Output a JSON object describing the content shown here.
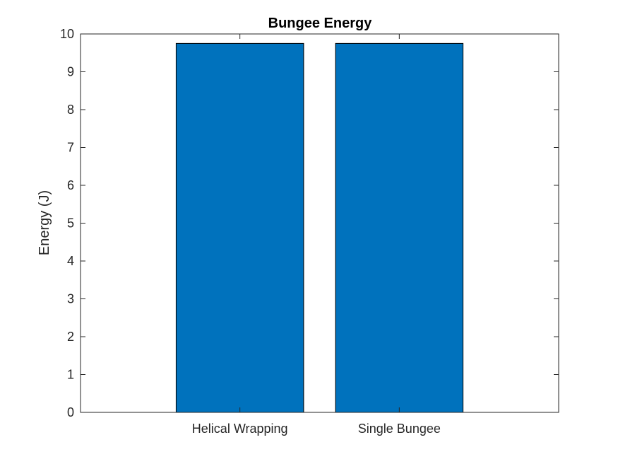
{
  "chart_data": {
    "type": "bar",
    "title": "Bungee Energy",
    "xlabel": "",
    "ylabel": "Energy (J)",
    "categories": [
      "Helical Wrapping",
      "Single Bungee"
    ],
    "values": [
      9.75,
      9.75
    ],
    "ylim": [
      0,
      10
    ],
    "yticks": [
      "0",
      "1",
      "2",
      "3",
      "4",
      "5",
      "6",
      "7",
      "8",
      "9",
      "10"
    ],
    "grid": false,
    "bar_color": "#0072BD",
    "bar_edge_color": "#000000"
  }
}
